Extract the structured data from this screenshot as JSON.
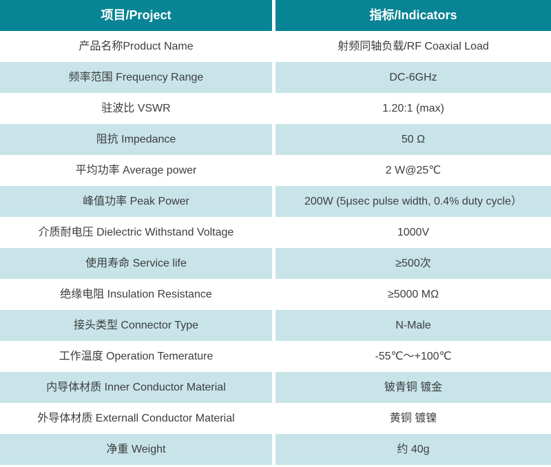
{
  "table": {
    "header": {
      "project": "项目/Project",
      "indicators": "指标/Indicators"
    },
    "rows": [
      {
        "project": "产品名称Product Name",
        "indicator": "射频同轴负载/RF Coaxial Load"
      },
      {
        "project": "频率范围 Frequency Range",
        "indicator": "DC-6GHz"
      },
      {
        "project": "驻波比 VSWR",
        "indicator": "1.20:1 (max)"
      },
      {
        "project": "阻抗 Impedance",
        "indicator": "50 Ω"
      },
      {
        "project": "平均功率 Average power",
        "indicator": "2 W@25℃"
      },
      {
        "project": "峰值功率 Peak Power",
        "indicator": "200W (5μsec pulse width, 0.4% duty cycle）"
      },
      {
        "project": "介质耐电压 Dielectric Withstand Voltage",
        "indicator": "1000V"
      },
      {
        "project": "使用寿命 Service life",
        "indicator": "≥500次"
      },
      {
        "project": "绝缘电阻 Insulation Resistance",
        "indicator": "≥5000 MΩ"
      },
      {
        "project": "接头类型 Connector Type",
        "indicator": "N-Male"
      },
      {
        "project": "工作温度 Operation Temerature",
        "indicator": "-55℃～+100℃"
      },
      {
        "project": "内导体材质 Inner Conductor Material",
        "indicator": "铍青铜 镀金"
      },
      {
        "project": "外导体材质 Externall Conductor Material",
        "indicator": "黄铜 镀镍"
      },
      {
        "project": "净重 Weight",
        "indicator": "约 40g"
      }
    ],
    "colors": {
      "header_bg": "#088494",
      "header_text": "#ffffff",
      "alt_row_bg": "#c8e4e9",
      "row_bg": "#ffffff",
      "body_text": "#3d3d3d"
    }
  }
}
